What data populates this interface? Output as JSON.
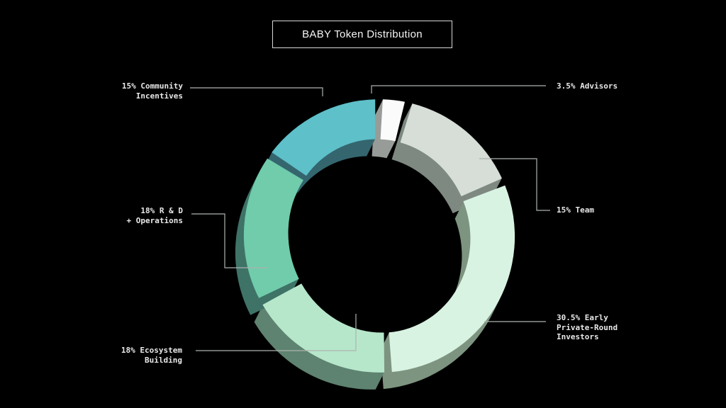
{
  "page": {
    "background": "#000000"
  },
  "title_box": {
    "label": "BABY Token Distribution"
  },
  "chart_data": {
    "type": "pie",
    "variant": "3d-extruded-donut",
    "title": "BABY Token Distribution",
    "unit": "percent",
    "total": 100,
    "start": "12-o-clock",
    "direction": "clockwise",
    "leader_line_color": "#adb3ae",
    "segments": [
      {
        "name": "advisors",
        "label": "3.5% Advisors",
        "label_lines": [
          "3.5% Advisors"
        ],
        "value": 3.5,
        "color": "#fbfbfb",
        "wall_color": "#989c98"
      },
      {
        "name": "team",
        "label": "15% Team",
        "label_lines": [
          "15% Team"
        ],
        "value": 15,
        "color": "#d6ded7",
        "wall_color": "#7e8981"
      },
      {
        "name": "investors",
        "label": "30.5% Early Private-Round Investors",
        "label_lines": [
          "30.5% Early",
          "Private-Round",
          "Investors"
        ],
        "value": 30.5,
        "color": "#d9f3e3",
        "wall_color": "#7d9480"
      },
      {
        "name": "ecosystem",
        "label": "18% Ecosystem Building",
        "label_lines": [
          "18% Ecosystem",
          "Building"
        ],
        "value": 18,
        "color": "#b7e7cb",
        "wall_color": "#5e8370"
      },
      {
        "name": "rnd",
        "label": "18% R & D + Operations",
        "label_lines": [
          "18% R & D",
          "+ Operations"
        ],
        "value": 18,
        "color": "#70ccab",
        "wall_color": "#3f7367"
      },
      {
        "name": "community",
        "label": "15% Community Incentives",
        "label_lines": [
          "15% Community",
          "Incentives"
        ],
        "value": 15,
        "color": "#5ec0c9",
        "wall_color": "#35666f"
      }
    ]
  }
}
